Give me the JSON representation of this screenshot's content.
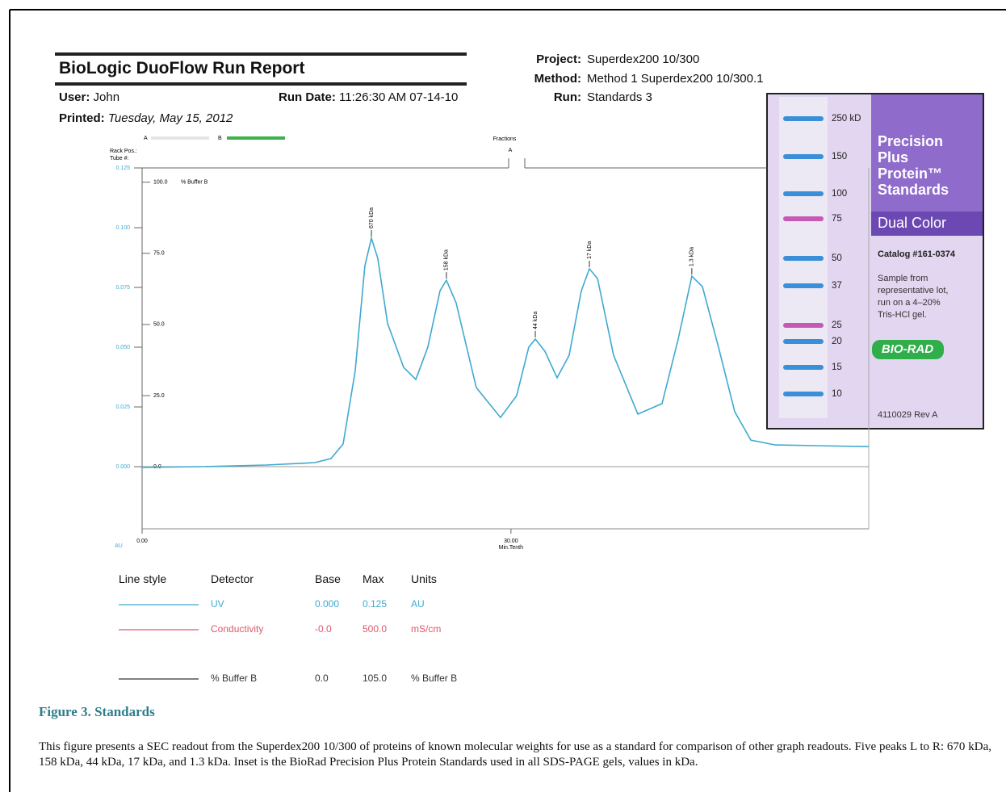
{
  "header": {
    "title": "BioLogic DuoFlow Run Report",
    "user_label": "User:",
    "user": "John",
    "run_date_label": "Run Date:",
    "run_date": "11:26:30 AM  07-14-10",
    "printed_label": "Printed:",
    "printed": "Tuesday, May 15, 2012",
    "project_label": "Project:",
    "project": "Superdex200 10/300",
    "method_label": "Method:",
    "method": "Method 1 Superdex200 10/300.1",
    "run_label": "Run:",
    "run": "Standards 3"
  },
  "chart_data": {
    "type": "line",
    "x": [
      0,
      4.86,
      10.1,
      14.05,
      15.36,
      16.35,
      17.33,
      18.12,
      18.65,
      19.17,
      19.96,
      21.27,
      22.26,
      23.24,
      24.23,
      24.75,
      25.54,
      27.18,
      29.15,
      30.46,
      31.45,
      31.98,
      32.76,
      33.75,
      34.73,
      35.72,
      36.38,
      37.04,
      38.35,
      40.32,
      42.29,
      43.6,
      44.71,
      45.57,
      46.88,
      48.2,
      49.51,
      51.48,
      59.09
    ],
    "series": [
      {
        "name": "UV",
        "color": "#3fa9d0",
        "values": [
          -0.0003,
          0,
          0.0007,
          0.0017,
          0.0034,
          0.0095,
          0.04,
          0.084,
          0.0956,
          0.0872,
          0.06,
          0.0416,
          0.0365,
          0.05,
          0.0736,
          0.078,
          0.0686,
          0.0331,
          0.0206,
          0.0297,
          0.05,
          0.0534,
          0.0483,
          0.0372,
          0.0466,
          0.0736,
          0.0828,
          0.0787,
          0.0466,
          0.022,
          0.0264,
          0.0534,
          0.0797,
          0.0753,
          0.05,
          0.023,
          0.0111,
          0.0091,
          0.0084
        ]
      }
    ],
    "xlim": [
      0,
      59.1
    ],
    "xticks": [
      {
        "value": 0,
        "label": "0.00"
      },
      {
        "value": 30,
        "label": "30.00"
      }
    ],
    "x_label": "Min.Tenth",
    "ylim": [
      -0.026,
      0.125
    ],
    "yticks": [
      {
        "value": 0,
        "label": "0.000"
      },
      0.025,
      {
        "value": 0.05,
        "label": "0.050"
      },
      0.075,
      {
        "value": 0.1,
        "label": "0.100"
      },
      0.125
    ],
    "y_label": "AU",
    "y2lim": [
      -21.8,
      105
    ],
    "y2ticks": [
      {
        "value": 0,
        "label": "0.0"
      },
      {
        "value": 25,
        "label": "25.0"
      },
      {
        "value": 50,
        "label": "50.0"
      },
      {
        "value": 75,
        "label": "75.0"
      },
      {
        "value": 100,
        "label": "100.0"
      }
    ],
    "y2_label": "% Buffer B",
    "annotations": [
      {
        "text": "670 kDa",
        "x": 18.65,
        "y": 0.0956
      },
      {
        "text": "158 kDa",
        "x": 24.75,
        "y": 0.078
      },
      {
        "text": "44 kDa",
        "x": 31.98,
        "y": 0.0534
      },
      {
        "text": "17 kDa",
        "x": 36.38,
        "y": 0.0828
      },
      {
        "text": "1.3 kDa",
        "x": 44.71,
        "y": 0.0797
      }
    ],
    "rack_label": "Rack Pos.:",
    "tube_label": "Tube #:",
    "fractions_label": "Fractions",
    "fraction_mark": "A",
    "valve_a": "A",
    "valve_b": "B"
  },
  "legend_table": {
    "headers": [
      "Line style",
      "Detector",
      "Base",
      "Max",
      "Units"
    ],
    "rows": [
      {
        "detector": "UV",
        "base": "0.000",
        "max": "0.125",
        "units": "AU",
        "color": "#3fa9d0"
      },
      {
        "detector": "Conductivity",
        "base": "-0.0",
        "max": "500.0",
        "units": "mS/cm",
        "color": "#e0576b"
      },
      {
        "detector": "% Buffer B",
        "base": "0.0",
        "max": "105.0",
        "units": "% Buffer B",
        "color": "#333333"
      }
    ]
  },
  "inset": {
    "bands": [
      "250 kD",
      "150",
      "100",
      "75",
      "50",
      "37",
      "25",
      "20",
      "15",
      "10"
    ],
    "product": [
      "Precision",
      "Plus",
      "Protein™",
      "Standards"
    ],
    "variant": "Dual Color",
    "catalog": "Catalog #161-0374",
    "note": [
      "Sample from",
      "representative lot,",
      "run on a 4–20%",
      "Tris-HCl gel."
    ],
    "brand": "BIO-RAD",
    "code": "4110029 Rev A"
  },
  "caption": {
    "title": "Figure 3. Standards",
    "text": "This figure presents a SEC readout from the Superdex200 10/300 of proteins of known molecular weights for use as a standard for comparison of other graph readouts. Five peaks L to R: 670 kDa, 158 kDa, 44 kDa, 17 kDa, and 1.3 kDa. Inset is the BioRad Precision Plus Protein Standards used in all SDS-PAGE gels, values in kDa."
  }
}
